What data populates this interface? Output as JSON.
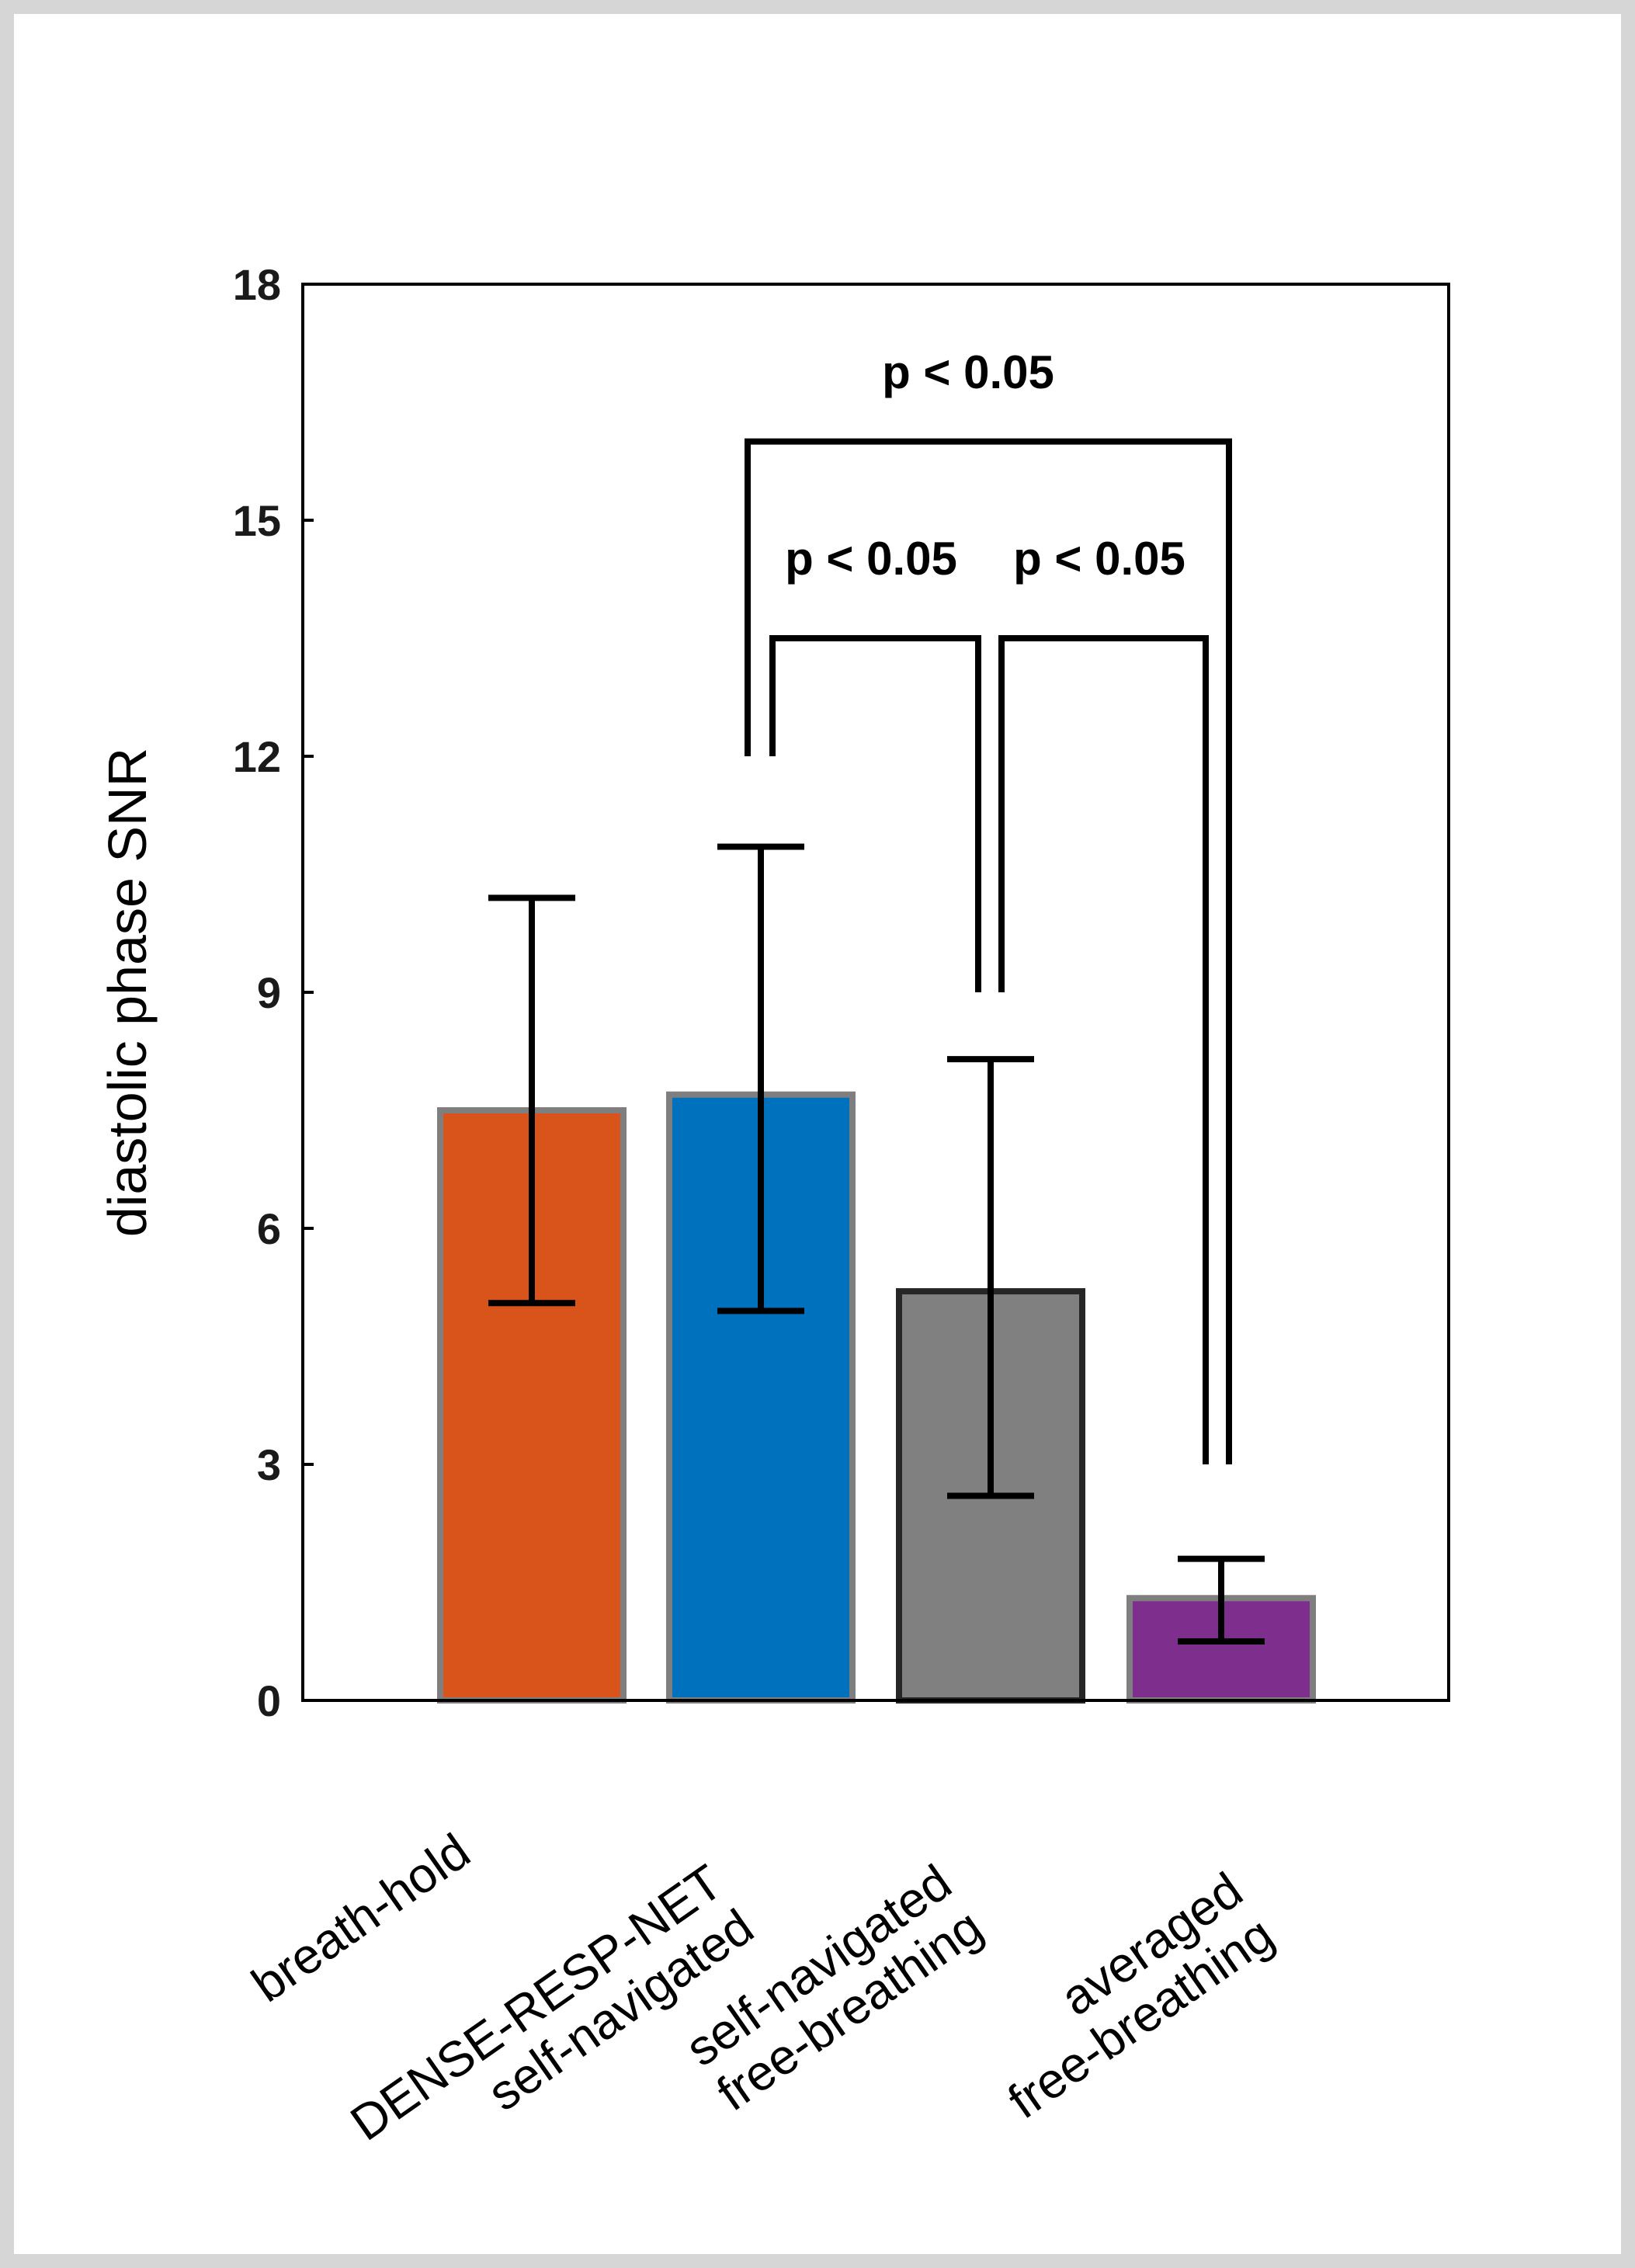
{
  "chart_data": {
    "type": "bar",
    "title": "",
    "xlabel": "",
    "ylabel": "diastolic phase SNR",
    "ylim": [
      0,
      18
    ],
    "yticks": [
      0,
      3,
      6,
      9,
      12,
      15,
      18
    ],
    "grid": false,
    "categories": [
      [
        "breath-hold"
      ],
      [
        "DENSE-RESP-NET",
        "self-navigated"
      ],
      [
        "self-navigated",
        "free-breathing"
      ],
      [
        "averaged",
        "free-breathing"
      ]
    ],
    "values": [
      7.5,
      7.7,
      5.2,
      1.3
    ],
    "error_low": [
      5.05,
      4.95,
      2.6,
      0.75
    ],
    "error_high": [
      10.2,
      10.85,
      8.15,
      1.8
    ],
    "colors": [
      "#d9541a",
      "#0072bd",
      "#808080",
      "#7e2f8e"
    ],
    "bar_edge_colors": [
      "#7f7f7f",
      "#7f7f7f",
      "#262626",
      "#7f7f7f"
    ],
    "significance": [
      {
        "from": 1,
        "to": 3,
        "label": "p < 0.05",
        "level": 16.0
      },
      {
        "from": 1,
        "to": 2,
        "label": "p < 0.05",
        "level": 13.5
      },
      {
        "from": 2,
        "to": 3,
        "label": "p < 0.05",
        "level": 13.5
      }
    ]
  }
}
